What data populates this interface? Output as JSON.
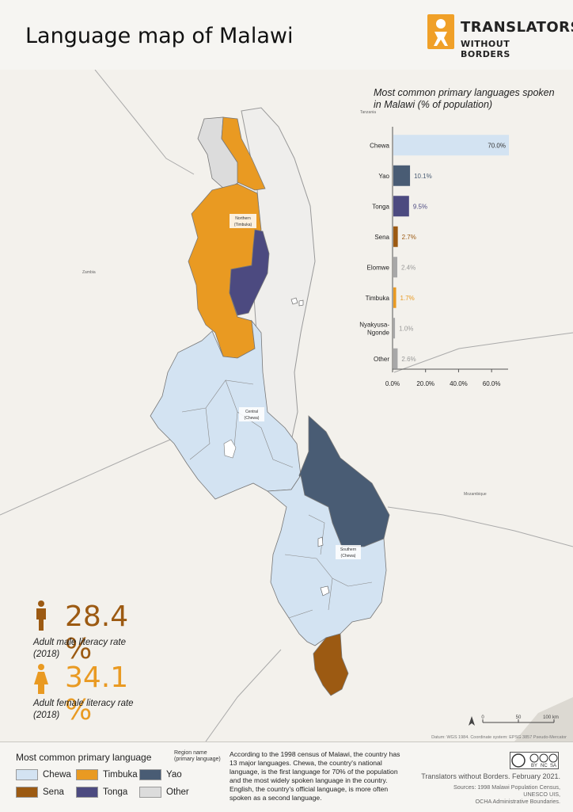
{
  "header": {
    "title": "Language map of Malawi",
    "logo_line1": "TRANSLATORS",
    "logo_line2": "WITHOUT BORDERS"
  },
  "colors": {
    "chewa": "#d3e3f2",
    "timbuka": "#e99a22",
    "yao": "#495c74",
    "sena": "#9c5a12",
    "tonga": "#4c4a80",
    "other": "#dcdcdc",
    "neighbor": "#efeeec",
    "background": "#f3f1ec"
  },
  "map": {
    "labels": {
      "tanzania": "Tanzania",
      "zambia": "Zambia",
      "mozambique": "Mozambique",
      "northern_1": "Northern",
      "northern_2": "(Timbuka)",
      "central_1": "Central",
      "central_2": "(Chewa)",
      "southern_1": "Southern",
      "southern_2": "(Chewa)"
    },
    "datum": "Datum: WGS 1984. Coordinate system: EPSG 3857 Pseudo-Mercator",
    "scale": {
      "ticks": [
        "0",
        "50",
        "100 km"
      ]
    }
  },
  "chart_data": {
    "type": "bar",
    "orientation": "horizontal",
    "title": "Most common primary languages spoken in Malawi (% of population)",
    "title_line1": "Most common primary languages spoken",
    "title_line2": "in Malawi (% of population)",
    "categories": [
      "Chewa",
      "Yao",
      "Tonga",
      "Sena",
      "Elomwe",
      "Timbuka",
      "Nyakyusa-Ngonde",
      "Other"
    ],
    "category_lines": [
      [
        "Chewa"
      ],
      [
        "Yao"
      ],
      [
        "Tonga"
      ],
      [
        "Sena"
      ],
      [
        "Elomwe"
      ],
      [
        "Timbuka"
      ],
      [
        "Nyakyusa-",
        "Ngonde"
      ],
      [
        "Other"
      ]
    ],
    "values": [
      70.0,
      10.1,
      9.5,
      2.7,
      2.4,
      1.7,
      1.0,
      2.6
    ],
    "value_labels": [
      "70.0%",
      "10.1%",
      "9.5%",
      "2.7%",
      "2.4%",
      "1.7%",
      "1.0%",
      "2.6%"
    ],
    "bar_colors": [
      "#d3e3f2",
      "#495c74",
      "#4c4a80",
      "#9c5a12",
      "#a8a8a8",
      "#e99a22",
      "#a8a8a8",
      "#a8a8a8"
    ],
    "label_colors": [
      "#333333",
      "#495c74",
      "#4c4a80",
      "#9c5a12",
      "#999999",
      "#e99a22",
      "#999999",
      "#999999"
    ],
    "xlim": [
      0,
      70
    ],
    "xticks": [
      0,
      20,
      40,
      60
    ],
    "xtick_labels": [
      "0.0%",
      "20.0%",
      "40.0%",
      "60.0%"
    ]
  },
  "stats": {
    "male": {
      "value": "28.4 %",
      "label_line1": "Adult male literacy rate",
      "label_line2": "(2018)",
      "color": "#9c5a12"
    },
    "female": {
      "value": "34.1 %",
      "label_line1": "Adult female literacy rate",
      "label_line2": "(2018)",
      "color": "#e99a22"
    }
  },
  "legend": {
    "title": "Most common primary language",
    "note_line1": "Region name",
    "note_line2": "(primary language)",
    "items": [
      {
        "label": "Chewa",
        "color": "#d3e3f2"
      },
      {
        "label": "Timbuka",
        "color": "#e99a22"
      },
      {
        "label": "Yao",
        "color": "#495c74"
      },
      {
        "label": "Sena",
        "color": "#9c5a12"
      },
      {
        "label": "Tonga",
        "color": "#4c4a80"
      },
      {
        "label": "Other",
        "color": "#dcdcdc"
      }
    ]
  },
  "footer": {
    "description": "According to the 1998 census of Malawi, the country has 13 major languages. Chewa, the country's national language, is the first language for 70% of the population and the most widely spoken language in the country. English, the country's official language, is more often spoken as a second language.",
    "cc_labels": [
      "BY",
      "NC",
      "SA"
    ],
    "credit": "Translators without Borders. February 2021.",
    "source_1": "Sources: 1998 Malawi Population Census,",
    "source_2": "UNESCO UIS,",
    "source_3": "OCHA Administrative Boundaries."
  }
}
